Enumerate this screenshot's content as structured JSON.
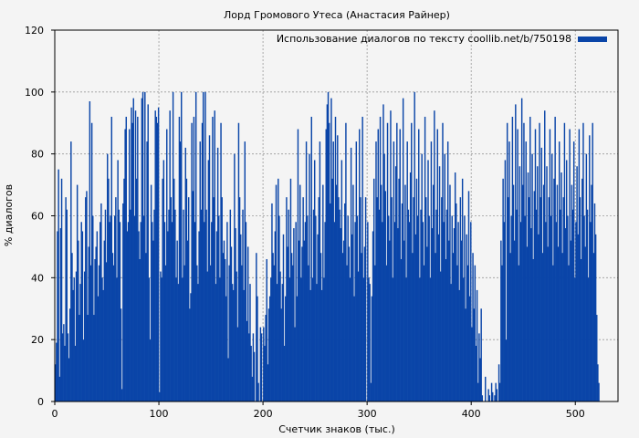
{
  "chart_data": {
    "type": "bar",
    "title": "Лорд Громового Утеса (Анастасия Райнер)",
    "xlabel": "Счетчик знаков (тыс.)",
    "ylabel": "% диалогов",
    "xlim": [
      0,
      541
    ],
    "ylim": [
      0,
      120
    ],
    "xticks": [
      0,
      100,
      200,
      300,
      400,
      500
    ],
    "yticks": [
      0,
      20,
      40,
      60,
      80,
      100,
      120
    ],
    "grid": true,
    "legend_position": "top-right",
    "series": [
      {
        "name": "Использование диалогов по тексту coollib.net/b/750198",
        "color": "#0a45a8",
        "x_start": 0,
        "x_step": 1,
        "values": [
          12,
          19,
          55,
          75,
          8,
          56,
          72,
          22,
          25,
          18,
          66,
          62,
          22,
          14,
          30,
          84,
          48,
          36,
          40,
          18,
          42,
          70,
          52,
          28,
          38,
          58,
          55,
          20,
          42,
          66,
          68,
          28,
          50,
          97,
          44,
          90,
          60,
          28,
          46,
          50,
          55,
          34,
          44,
          58,
          64,
          40,
          36,
          52,
          62,
          45,
          80,
          72,
          58,
          60,
          92,
          48,
          44,
          60,
          66,
          40,
          78,
          62,
          58,
          30,
          4,
          64,
          72,
          88,
          92,
          55,
          58,
          88,
          62,
          95,
          90,
          98,
          60,
          94,
          72,
          92,
          55,
          46,
          58,
          98,
          100,
          60,
          100,
          48,
          84,
          96,
          40,
          20,
          70,
          58,
          52,
          62,
          94,
          92,
          90,
          95,
          3,
          42,
          40,
          72,
          78,
          58,
          44,
          88,
          55,
          62,
          94,
          66,
          58,
          100,
          72,
          62,
          40,
          52,
          38,
          92,
          84,
          100,
          40,
          62,
          44,
          82,
          72,
          52,
          66,
          30,
          35,
          90,
          68,
          92,
          58,
          100,
          44,
          38,
          55,
          84,
          62,
          90,
          100,
          58,
          100,
          62,
          42,
          78,
          86,
          44,
          58,
          92,
          66,
          94,
          38,
          55,
          82,
          60,
          40,
          90,
          66,
          48,
          52,
          46,
          34,
          58,
          14,
          44,
          62,
          50,
          38,
          36,
          80,
          56,
          42,
          24,
          90,
          66,
          54,
          44,
          62,
          36,
          84,
          58,
          26,
          50,
          22,
          38,
          18,
          8,
          22,
          16,
          0,
          48,
          34,
          6,
          0,
          24,
          22,
          0,
          24,
          18,
          28,
          46,
          12,
          30,
          34,
          40,
          64,
          48,
          44,
          55,
          70,
          38,
          72,
          60,
          42,
          30,
          38,
          54,
          18,
          34,
          66,
          50,
          62,
          40,
          72,
          48,
          44,
          56,
          24,
          58,
          34,
          88,
          52,
          70,
          40,
          50,
          66,
          52,
          58,
          84,
          60,
          44,
          80,
          36,
          92,
          40,
          62,
          78,
          60,
          38,
          54,
          66,
          84,
          48,
          36,
          70,
          40,
          58,
          88,
          96,
          100,
          90,
          64,
          98,
          72,
          84,
          58,
          92,
          70,
          86,
          66,
          62,
          56,
          78,
          48,
          52,
          64,
          90,
          44,
          60,
          50,
          40,
          82,
          54,
          70,
          34,
          58,
          84,
          60,
          42,
          88,
          66,
          48,
          92,
          40,
          50,
          66,
          0,
          58,
          40,
          38,
          6,
          34,
          55,
          72,
          44,
          84,
          66,
          88,
          62,
          92,
          70,
          58,
          96,
          80,
          68,
          44,
          90,
          60,
          52,
          94,
          66,
          40,
          84,
          58,
          76,
          90,
          56,
          72,
          88,
          46,
          64,
          98,
          52,
          70,
          40,
          84,
          62,
          58,
          74,
          90,
          48,
          66,
          100,
          54,
          72,
          60,
          88,
          40,
          62,
          80,
          58,
          44,
          92,
          66,
          50,
          78,
          60,
          40,
          84,
          56,
          70,
          94,
          48,
          62,
          88,
          54,
          76,
          42,
          66,
          90,
          58,
          80,
          46,
          62,
          84,
          52,
          70,
          38,
          60,
          48,
          56,
          74,
          64,
          44,
          58,
          36,
          66,
          52,
          72,
          40,
          60,
          30,
          54,
          44,
          68,
          34,
          58,
          24,
          48,
          30,
          44,
          18,
          36,
          6,
          22,
          14,
          30,
          2,
          0,
          0,
          8,
          0,
          0,
          4,
          2,
          0,
          6,
          3,
          0,
          2,
          6,
          4,
          0,
          12,
          6,
          52,
          44,
          72,
          58,
          78,
          20,
          90,
          66,
          84,
          48,
          60,
          92,
          70,
          52,
          96,
          62,
          88,
          44,
          76,
          58,
          98,
          70,
          90,
          60,
          84,
          50,
          74,
          66,
          92,
          56,
          80,
          46,
          68,
          88,
          62,
          76,
          54,
          90,
          66,
          82,
          48,
          70,
          94,
          58,
          76,
          50,
          66,
          88,
          60,
          80,
          44,
          72,
          92,
          58,
          70,
          50,
          84,
          62,
          74,
          48,
          66,
          90,
          56,
          78,
          60,
          44,
          88,
          52,
          70,
          62,
          84,
          40,
          58,
          76,
          54,
          88,
          66,
          46,
          72,
          90,
          60,
          50,
          80,
          62,
          40,
          86,
          58,
          70,
          90,
          48,
          64,
          54,
          28,
          12,
          6
        ]
      }
    ]
  }
}
